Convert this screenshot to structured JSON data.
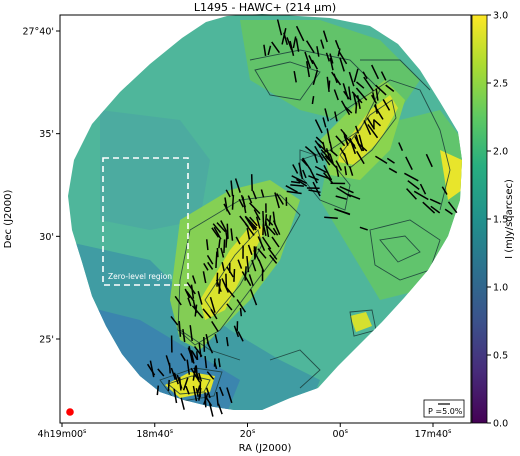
{
  "chart_data": {
    "type": "heatmap",
    "title": "L1495 - HAWC+ (214 μm)",
    "xlabel": "RA (J2000)",
    "ylabel": "Dec (J2000)",
    "x_ticks": [
      {
        "label_main": "4h19m00",
        "label_sup": "s",
        "pos": 0.0
      },
      {
        "label_main": "18m40",
        "label_sup": "s",
        "pos": 1.0
      },
      {
        "label_main": "20",
        "label_sup": "s",
        "pos": 2.0
      },
      {
        "label_main": "00",
        "label_sup": "s",
        "pos": 3.0
      },
      {
        "label_main": "17m40",
        "label_sup": "s",
        "pos": 4.0
      }
    ],
    "y_ticks": [
      {
        "label": "27°40'",
        "arcmin": 40
      },
      {
        "label": "35'",
        "arcmin": 35
      },
      {
        "label": "30'",
        "arcmin": 30
      },
      {
        "label": "25'",
        "arcmin": 25
      }
    ],
    "colorbar": {
      "label": "I (mJy/sqarcsec)",
      "min": 0.0,
      "max": 3.0,
      "ticks": [
        "0.0",
        "0.5",
        "1.0",
        "1.5",
        "2.0",
        "2.5",
        "3.0"
      ],
      "colormap": "viridis"
    },
    "annotations": {
      "zero_level_label": "Zero-level region",
      "scale_bar_label": "P =5.0%"
    },
    "colors": {
      "background": "#ffffff",
      "beam": "#ff0000",
      "zero_box": "#ffffff",
      "vectors": "#000000"
    }
  }
}
